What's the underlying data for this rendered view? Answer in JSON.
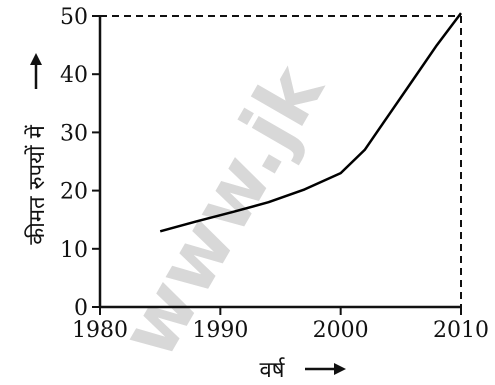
{
  "watermark": "www.jk",
  "chart_data": {
    "type": "line",
    "title": "",
    "xlabel": "वर्ष",
    "ylabel": "कीमत रुपयों में",
    "xlim": [
      1980,
      2010
    ],
    "ylim": [
      0,
      50
    ],
    "xticks": [
      1980,
      1990,
      2000,
      2010
    ],
    "yticks": [
      0,
      10,
      20,
      30,
      40,
      50
    ],
    "grid": false,
    "legend": "none",
    "line_color": "#000000",
    "series": [
      {
        "x": [
          1985,
          1988,
          1991,
          1994,
          1997,
          2000,
          2002,
          2004,
          2006,
          2008,
          2010
        ],
        "y": [
          13,
          14.7,
          16.3,
          18,
          20.2,
          23,
          27,
          33,
          39,
          45,
          50.5
        ]
      }
    ]
  }
}
